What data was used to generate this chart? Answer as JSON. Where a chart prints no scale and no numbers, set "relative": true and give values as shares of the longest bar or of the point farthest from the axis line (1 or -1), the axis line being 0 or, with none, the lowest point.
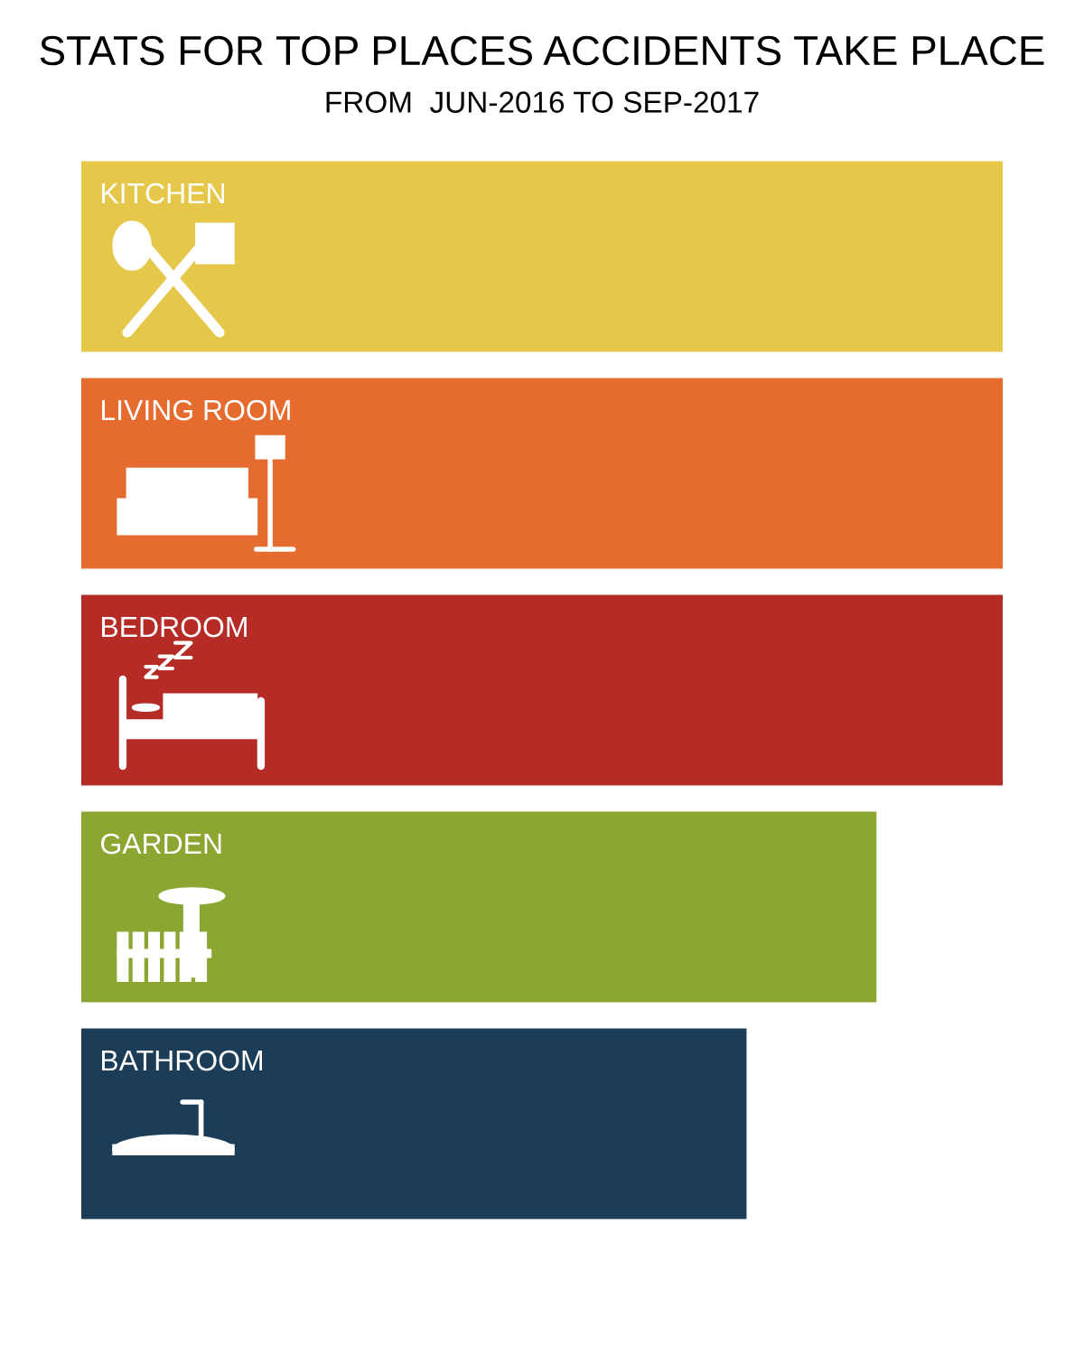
{
  "chart_data": {
    "type": "bar",
    "title": "STATS FOR TOP PLACES ACCIDENTS TAKE PLACE",
    "subtitle": "FROM  JUN-2016 TO SEP-2017",
    "orientation": "horizontal",
    "relative": true,
    "categories": [
      "KITCHEN",
      "LIVING ROOM",
      "BEDROOM",
      "GARDEN",
      "BATHROOM"
    ],
    "values": [
      1,
      1,
      1,
      0.863,
      0.722
    ],
    "colors": [
      "#e5c84a",
      "#e66b2e",
      "#b52b25",
      "#8ba631",
      "#1b3d58"
    ]
  }
}
